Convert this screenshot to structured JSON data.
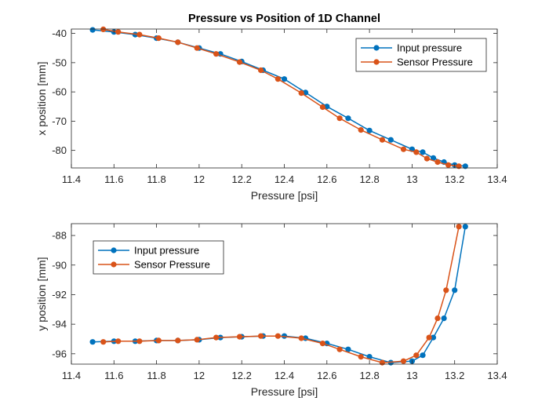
{
  "colors": {
    "input": "#0072BD",
    "sensor": "#D95319",
    "axis": "#262626"
  },
  "chart_data": [
    {
      "type": "line",
      "title": "Pressure vs Position of 1D Channel",
      "xlabel": "Pressure [psi]",
      "ylabel": "x position [mm]",
      "xlim": [
        11.4,
        13.4
      ],
      "ylim": [
        -86,
        -38.5
      ],
      "xticks": [
        11.4,
        11.6,
        11.8,
        12,
        12.2,
        12.4,
        12.6,
        12.8,
        13,
        13.2,
        13.4
      ],
      "xtick_labels": [
        "11.4",
        "11.6",
        "11.8",
        "12",
        "12.2",
        "12.4",
        "12.6",
        "12.8",
        "13",
        "13.2",
        "13.4"
      ],
      "yticks": [
        -40,
        -50,
        -60,
        -70,
        -80
      ],
      "ytick_labels": [
        "-40",
        "-50",
        "-60",
        "-70",
        "-80"
      ],
      "legend_position": "top-right",
      "series": [
        {
          "name": "Input pressure",
          "x": [
            11.5,
            11.6,
            11.7,
            11.8,
            11.9,
            12.0,
            12.1,
            12.2,
            12.3,
            12.4,
            12.5,
            12.6,
            12.7,
            12.8,
            12.9,
            13.0,
            13.05,
            13.1,
            13.15,
            13.2,
            13.25
          ],
          "y": [
            -38.8,
            -39.5,
            -40.4,
            -41.6,
            -43.0,
            -45.0,
            -47.0,
            -49.6,
            -52.6,
            -55.6,
            -60.2,
            -65.0,
            -69.0,
            -73.2,
            -76.4,
            -79.6,
            -80.6,
            -82.6,
            -84.0,
            -85.0,
            -85.4
          ]
        },
        {
          "name": "Sensor Pressure",
          "x": [
            11.55,
            11.62,
            11.72,
            11.81,
            11.9,
            11.99,
            12.08,
            12.19,
            12.29,
            12.37,
            12.48,
            12.58,
            12.66,
            12.76,
            12.86,
            12.96,
            13.02,
            13.07,
            13.12,
            13.17,
            13.22
          ],
          "y": [
            -38.6,
            -39.5,
            -40.4,
            -41.6,
            -43.0,
            -45.0,
            -47.0,
            -49.8,
            -52.6,
            -55.6,
            -60.4,
            -65.2,
            -69.0,
            -73.0,
            -76.4,
            -79.6,
            -80.6,
            -82.8,
            -84.0,
            -85.0,
            -85.4
          ]
        }
      ]
    },
    {
      "type": "line",
      "title": "",
      "xlabel": "Pressure [psi]",
      "ylabel": "y position [mm]",
      "xlim": [
        11.4,
        13.4
      ],
      "ylim": [
        -96.7,
        -87.2
      ],
      "xticks": [
        11.4,
        11.6,
        11.8,
        12,
        12.2,
        12.4,
        12.6,
        12.8,
        13,
        13.2,
        13.4
      ],
      "xtick_labels": [
        "11.4",
        "11.6",
        "11.8",
        "12",
        "12.2",
        "12.4",
        "12.6",
        "12.8",
        "13",
        "13.2",
        "13.4"
      ],
      "yticks": [
        -88,
        -90,
        -92,
        -94,
        -96
      ],
      "ytick_labels": [
        "-88",
        "-90",
        "-92",
        "-94",
        "-96"
      ],
      "legend_position": "top-left",
      "series": [
        {
          "name": "Input pressure",
          "x": [
            11.5,
            11.6,
            11.7,
            11.8,
            11.9,
            12.0,
            12.1,
            12.2,
            12.3,
            12.4,
            12.5,
            12.6,
            12.7,
            12.8,
            12.9,
            13.0,
            13.05,
            13.1,
            13.15,
            13.2,
            13.25
          ],
          "y": [
            -95.2,
            -95.15,
            -95.15,
            -95.1,
            -95.1,
            -95.05,
            -94.9,
            -94.85,
            -94.8,
            -94.8,
            -94.95,
            -95.3,
            -95.7,
            -96.2,
            -96.6,
            -96.5,
            -96.1,
            -94.9,
            -93.6,
            -91.7,
            -87.4
          ]
        },
        {
          "name": "Sensor Pressure",
          "x": [
            11.55,
            11.62,
            11.72,
            11.81,
            11.9,
            11.99,
            12.08,
            12.19,
            12.29,
            12.37,
            12.48,
            12.58,
            12.66,
            12.76,
            12.86,
            12.96,
            13.02,
            13.08,
            13.12,
            13.16,
            13.22
          ],
          "y": [
            -95.2,
            -95.15,
            -95.15,
            -95.1,
            -95.1,
            -95.05,
            -94.9,
            -94.85,
            -94.8,
            -94.8,
            -94.95,
            -95.3,
            -95.7,
            -96.2,
            -96.6,
            -96.5,
            -96.1,
            -94.9,
            -93.6,
            -91.7,
            -87.4
          ]
        }
      ]
    }
  ]
}
